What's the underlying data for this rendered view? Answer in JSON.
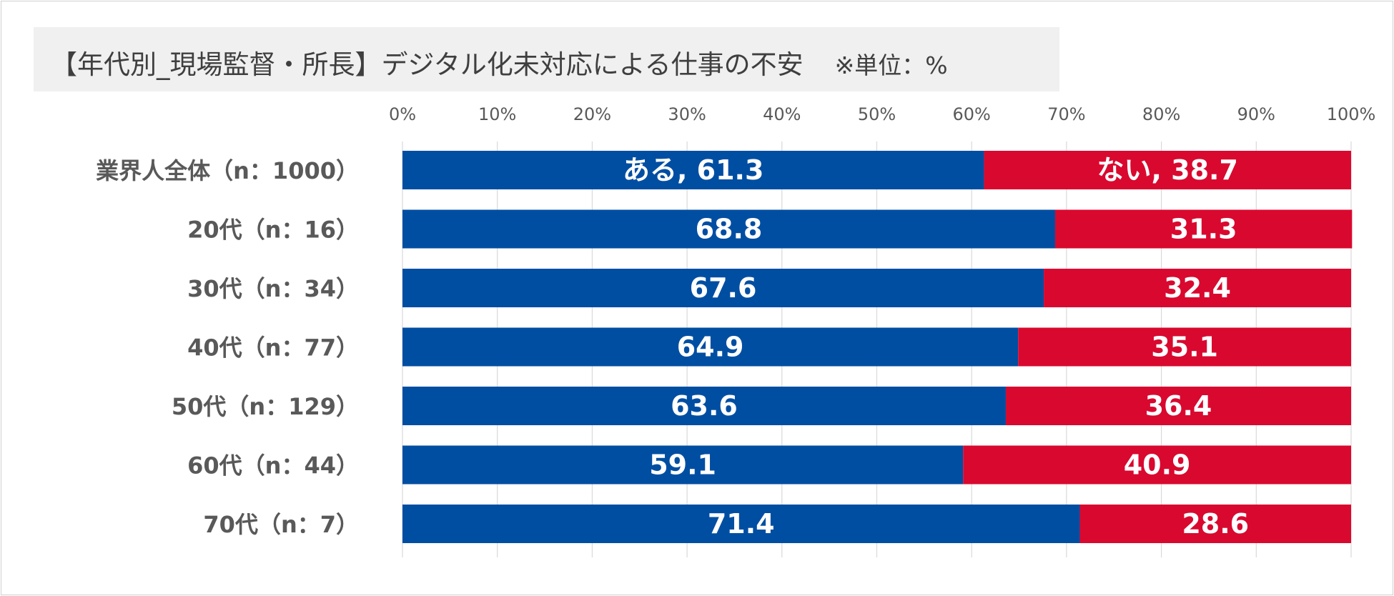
{
  "title": "【年代別_現場監督・所長】デジタル化未対応による仕事の不安",
  "unit_note": "※単位：%",
  "colors": {
    "yes": "#004ea2",
    "no": "#d9082f",
    "grid": "#d9d9d9",
    "tick_text": "#595959",
    "category_text": "#595959",
    "bar_label": "#ffffff"
  },
  "chart_data": {
    "type": "bar",
    "orientation": "horizontal",
    "stacked": "100%",
    "categories": [
      "業界人全体（n：1000）",
      "20代（n：16）",
      "30代（n：34）",
      "40代（n：77）",
      "50代（n：129）",
      "60代（n：44）",
      "70代（n：7）"
    ],
    "series": [
      {
        "name": "ある",
        "values": [
          61.3,
          68.8,
          67.6,
          64.9,
          63.6,
          59.1,
          71.4
        ]
      },
      {
        "name": "ない",
        "values": [
          38.7,
          31.3,
          32.4,
          35.1,
          36.4,
          40.9,
          28.6
        ]
      }
    ],
    "data_labels": [
      [
        "ある, 61.3",
        "68.8",
        "67.6",
        "64.9",
        "63.6",
        "59.1",
        "71.4"
      ],
      [
        "ない, 38.7",
        "31.3",
        "32.4",
        "35.1",
        "36.4",
        "40.9",
        "28.6"
      ]
    ],
    "x_ticks": [
      "0%",
      "10%",
      "20%",
      "30%",
      "40%",
      "50%",
      "60%",
      "70%",
      "80%",
      "90%",
      "100%"
    ],
    "xlim": [
      0,
      100
    ],
    "grid": true,
    "x_axis_position": "top",
    "legend": "none"
  }
}
